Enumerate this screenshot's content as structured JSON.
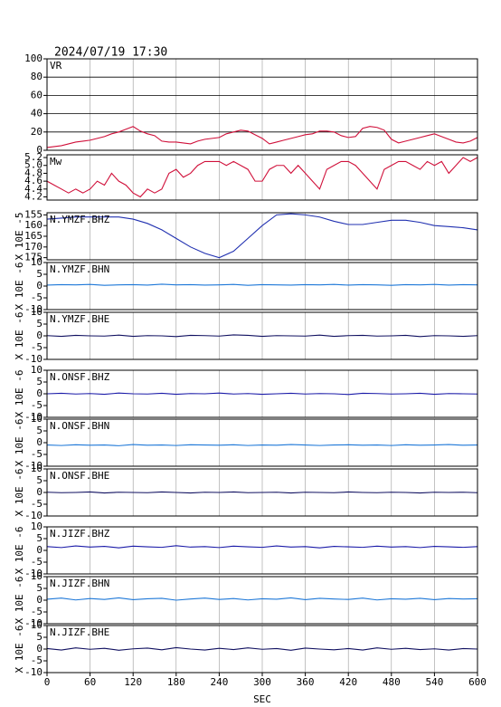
{
  "chart_data": [
    {
      "type": "line",
      "title": "2024/07/19 17:30",
      "label": "VR",
      "color": "#d0103a",
      "grid": true,
      "xlim": [
        0,
        600
      ],
      "ylim": [
        0,
        100
      ],
      "yticks": [
        0,
        20,
        40,
        60,
        80,
        100
      ],
      "x": [
        0,
        10,
        20,
        30,
        40,
        50,
        60,
        70,
        80,
        90,
        100,
        110,
        120,
        130,
        140,
        150,
        160,
        170,
        180,
        190,
        200,
        210,
        220,
        230,
        240,
        250,
        260,
        270,
        280,
        290,
        300,
        310,
        320,
        330,
        340,
        350,
        360,
        370,
        380,
        390,
        400,
        410,
        420,
        430,
        440,
        450,
        460,
        470,
        480,
        490,
        500,
        510,
        520,
        530,
        540,
        550,
        560,
        570,
        580,
        590,
        600
      ],
      "values": [
        3,
        4,
        5,
        7,
        9,
        10,
        11,
        13,
        15,
        18,
        20,
        23,
        26,
        21,
        18,
        16,
        10,
        9,
        9,
        8,
        7,
        10,
        12,
        13,
        14,
        18,
        20,
        22,
        21,
        17,
        13,
        7,
        9,
        11,
        13,
        15,
        17,
        18,
        21,
        21,
        20,
        16,
        14,
        15,
        24,
        26,
        25,
        22,
        12,
        8,
        10,
        12,
        14,
        16,
        18,
        15,
        12,
        9,
        8,
        10,
        14
      ]
    },
    {
      "type": "line",
      "label": "Mw",
      "color": "#d0103a",
      "grid": false,
      "xlim": [
        0,
        600
      ],
      "ylim": [
        4.12,
        5.27
      ],
      "yticks": [
        4.2,
        4.4,
        4.6,
        4.8,
        {
          "value": 5,
          "label": "5.0"
        },
        5.2
      ],
      "x": [
        0,
        10,
        20,
        30,
        40,
        50,
        60,
        70,
        80,
        90,
        100,
        110,
        120,
        130,
        140,
        150,
        160,
        170,
        180,
        190,
        200,
        210,
        220,
        230,
        240,
        250,
        260,
        270,
        280,
        290,
        300,
        310,
        320,
        330,
        340,
        350,
        360,
        370,
        380,
        390,
        400,
        410,
        420,
        430,
        440,
        450,
        460,
        470,
        480,
        490,
        500,
        510,
        520,
        530,
        540,
        550,
        560,
        570,
        580,
        590,
        600
      ],
      "values": [
        4.6,
        4.5,
        4.4,
        4.3,
        4.4,
        4.3,
        4.4,
        4.6,
        4.5,
        4.8,
        4.6,
        4.5,
        4.3,
        4.2,
        4.4,
        4.3,
        4.4,
        4.8,
        4.9,
        4.7,
        4.8,
        5.0,
        5.1,
        5.1,
        5.1,
        5.0,
        5.1,
        5.0,
        4.9,
        4.6,
        4.6,
        4.9,
        5.0,
        5.0,
        4.8,
        5.0,
        4.8,
        4.6,
        4.4,
        4.9,
        5.0,
        5.1,
        5.1,
        5.0,
        4.8,
        4.6,
        4.4,
        4.9,
        5.0,
        5.1,
        5.1,
        5.0,
        4.9,
        5.1,
        5.0,
        5.1,
        4.8,
        5.0,
        5.2,
        5.1,
        5.2
      ]
    },
    {
      "type": "line",
      "label": "N.YMZF.BHZ",
      "ylabel": "X 10E -5",
      "color": "#2030b0",
      "grid": false,
      "xlim": [
        0,
        600
      ],
      "ylim": [
        176,
        154
      ],
      "yticks": [
        155,
        160,
        165,
        170,
        175
      ],
      "x": [
        0,
        20,
        40,
        60,
        80,
        100,
        120,
        140,
        160,
        180,
        200,
        220,
        240,
        260,
        280,
        300,
        320,
        340,
        360,
        380,
        400,
        420,
        440,
        460,
        480,
        500,
        520,
        540,
        560,
        580,
        600
      ],
      "values": [
        157,
        156.5,
        156,
        156,
        156,
        156,
        157,
        159,
        162,
        166,
        170,
        173,
        175,
        172,
        166,
        160,
        155,
        154.5,
        155,
        156,
        158,
        159.5,
        159.5,
        158.5,
        157.5,
        157.5,
        158.5,
        160,
        160.5,
        161,
        162
      ]
    },
    {
      "type": "line",
      "label": "N.YMZF.BHN",
      "ylabel": "X 10E -6",
      "color": "#1e78d8",
      "grid": false,
      "xlim": [
        0,
        600
      ],
      "ylim": [
        -10,
        10
      ],
      "yticks": [
        -10,
        -5,
        0,
        5,
        10
      ],
      "x": [
        0,
        20,
        40,
        60,
        80,
        100,
        120,
        140,
        160,
        180,
        200,
        220,
        240,
        260,
        280,
        300,
        320,
        340,
        360,
        380,
        400,
        420,
        440,
        460,
        480,
        500,
        520,
        540,
        560,
        580,
        600
      ],
      "values": [
        0.4,
        0.6,
        0.5,
        0.7,
        0.3,
        0.5,
        0.6,
        0.4,
        0.8,
        0.5,
        0.6,
        0.4,
        0.5,
        0.7,
        0.3,
        0.6,
        0.5,
        0.4,
        0.6,
        0.5,
        0.7,
        0.4,
        0.6,
        0.5,
        0.3,
        0.6,
        0.5,
        0.7,
        0.4,
        0.6,
        0.5
      ]
    },
    {
      "type": "line",
      "label": "N.YMZF.BHE",
      "ylabel": "X 10E -6",
      "color": "#101060",
      "grid": false,
      "xlim": [
        0,
        600
      ],
      "ylim": [
        -10,
        10
      ],
      "yticks": [
        -10,
        -5,
        0,
        5,
        10
      ],
      "x": [
        0,
        20,
        40,
        60,
        80,
        100,
        120,
        140,
        160,
        180,
        200,
        220,
        240,
        260,
        280,
        300,
        320,
        340,
        360,
        380,
        400,
        420,
        440,
        460,
        480,
        500,
        520,
        540,
        560,
        580,
        600
      ],
      "values": [
        0.1,
        -0.2,
        0.2,
        0,
        -0.1,
        0.3,
        -0.2,
        0.1,
        0,
        -0.3,
        0.2,
        0.1,
        -0.1,
        0.4,
        0.2,
        -0.2,
        0.1,
        0,
        -0.1,
        0.3,
        -0.2,
        0.1,
        0.2,
        -0.1,
        0,
        0.2,
        -0.3,
        0.1,
        0,
        -0.2,
        0.1
      ]
    },
    {
      "type": "line",
      "label": "N.ONSF.BHZ",
      "ylabel": "X 10E -6",
      "color": "#1a1aa8",
      "grid": false,
      "xlim": [
        0,
        600
      ],
      "ylim": [
        -10,
        10
      ],
      "yticks": [
        -10,
        -5,
        0,
        5,
        10
      ],
      "x": [
        0,
        20,
        40,
        60,
        80,
        100,
        120,
        140,
        160,
        180,
        200,
        220,
        240,
        260,
        280,
        300,
        320,
        340,
        360,
        380,
        400,
        420,
        440,
        460,
        480,
        500,
        520,
        540,
        560,
        580,
        600
      ],
      "values": [
        0,
        0.2,
        -0.1,
        0.1,
        -0.2,
        0.3,
        0,
        -0.1,
        0.2,
        -0.2,
        0.1,
        0,
        0.3,
        -0.1,
        0.1,
        -0.2,
        0,
        0.2,
        -0.1,
        0.1,
        0,
        -0.3,
        0.2,
        0.1,
        -0.1,
        0,
        0.2,
        -0.2,
        0.1,
        0,
        -0.1
      ]
    },
    {
      "type": "line",
      "label": "N.ONSF.BHN",
      "ylabel": "X 10E -6",
      "color": "#1e78d8",
      "grid": false,
      "xlim": [
        0,
        600
      ],
      "ylim": [
        -10,
        10
      ],
      "yticks": [
        -10,
        -5,
        0,
        5,
        10
      ],
      "x": [
        0,
        20,
        40,
        60,
        80,
        100,
        120,
        140,
        160,
        180,
        200,
        220,
        240,
        260,
        280,
        300,
        320,
        340,
        360,
        380,
        400,
        420,
        440,
        460,
        480,
        500,
        520,
        540,
        560,
        580,
        600
      ],
      "values": [
        -1,
        -1.2,
        -0.9,
        -1.1,
        -1,
        -1.3,
        -0.8,
        -1.1,
        -1,
        -1.2,
        -0.9,
        -1,
        -1.1,
        -0.9,
        -1.2,
        -1,
        -1.1,
        -0.8,
        -1,
        -1.2,
        -1,
        -0.9,
        -1.1,
        -1,
        -1.2,
        -0.9,
        -1.1,
        -1,
        -0.8,
        -1.1,
        -1
      ]
    },
    {
      "type": "line",
      "label": "N.ONSF.BHE",
      "ylabel": "X 10E -6",
      "color": "#101060",
      "grid": false,
      "xlim": [
        0,
        600
      ],
      "ylim": [
        -10,
        10
      ],
      "yticks": [
        -10,
        -5,
        0,
        5,
        10
      ],
      "x": [
        0,
        20,
        40,
        60,
        80,
        100,
        120,
        140,
        160,
        180,
        200,
        220,
        240,
        260,
        280,
        300,
        320,
        340,
        360,
        380,
        400,
        420,
        440,
        460,
        480,
        500,
        520,
        540,
        560,
        580,
        600
      ],
      "values": [
        0.1,
        -0.1,
        0,
        0.2,
        -0.2,
        0.1,
        0,
        -0.1,
        0.2,
        0,
        -0.2,
        0.1,
        0,
        0.2,
        -0.1,
        0,
        0.1,
        -0.2,
        0.1,
        0,
        -0.1,
        0.2,
        0,
        -0.1,
        0.1,
        0,
        -0.2,
        0.1,
        0,
        0.1,
        -0.1
      ]
    },
    {
      "type": "line",
      "label": "N.JIZF.BHZ",
      "ylabel": "X 10E -6",
      "color": "#1a1aa8",
      "grid": false,
      "xlim": [
        0,
        600
      ],
      "ylim": [
        -10,
        10
      ],
      "yticks": [
        -10,
        -5,
        0,
        5,
        10
      ],
      "x": [
        0,
        20,
        40,
        60,
        80,
        100,
        120,
        140,
        160,
        180,
        200,
        220,
        240,
        260,
        280,
        300,
        320,
        340,
        360,
        380,
        400,
        420,
        440,
        460,
        480,
        500,
        520,
        540,
        560,
        580,
        600
      ],
      "values": [
        1.6,
        1.2,
        1.9,
        1.4,
        1.7,
        1.1,
        1.8,
        1.5,
        1.3,
        2.0,
        1.4,
        1.6,
        1.2,
        1.8,
        1.5,
        1.3,
        1.9,
        1.4,
        1.6,
        1.1,
        1.7,
        1.5,
        1.3,
        1.8,
        1.4,
        1.6,
        1.2,
        1.7,
        1.5,
        1.3,
        1.6
      ]
    },
    {
      "type": "line",
      "label": "N.JIZF.BHN",
      "ylabel": "X 10E -6",
      "color": "#1e78d8",
      "grid": false,
      "xlim": [
        0,
        600
      ],
      "ylim": [
        -10,
        10
      ],
      "yticks": [
        -10,
        -5,
        0,
        5,
        10
      ],
      "x": [
        0,
        20,
        40,
        60,
        80,
        100,
        120,
        140,
        160,
        180,
        200,
        220,
        240,
        260,
        280,
        300,
        320,
        340,
        360,
        380,
        400,
        420,
        440,
        460,
        480,
        500,
        520,
        540,
        560,
        580,
        600
      ],
      "values": [
        0.4,
        0.9,
        0.1,
        0.7,
        0.3,
        1.0,
        0.2,
        0.6,
        0.8,
        0,
        0.5,
        0.9,
        0.3,
        0.7,
        0.1,
        0.6,
        0.4,
        1.0,
        0.2,
        0.8,
        0.5,
        0.3,
        0.9,
        0.1,
        0.6,
        0.4,
        0.8,
        0.2,
        0.7,
        0.5,
        0.6
      ]
    },
    {
      "type": "line",
      "label": "N.JIZF.BHE",
      "ylabel": "X 10E -6",
      "color": "#101060",
      "grid": false,
      "xlim": [
        0,
        600
      ],
      "ylim": [
        -10,
        10
      ],
      "yticks": [
        -10,
        -5,
        0,
        5,
        10
      ],
      "xticks": [
        0,
        60,
        120,
        180,
        240,
        300,
        360,
        420,
        480,
        540,
        600
      ],
      "xlabel": "SEC",
      "x": [
        0,
        20,
        40,
        60,
        80,
        100,
        120,
        140,
        160,
        180,
        200,
        220,
        240,
        260,
        280,
        300,
        320,
        340,
        360,
        380,
        400,
        420,
        440,
        460,
        480,
        500,
        520,
        540,
        560,
        580,
        600
      ],
      "values": [
        0.2,
        -0.4,
        0.5,
        -0.1,
        0.3,
        -0.5,
        0.1,
        0.4,
        -0.3,
        0.6,
        0,
        -0.4,
        0.3,
        -0.2,
        0.5,
        -0.1,
        0.2,
        -0.5,
        0.4,
        0,
        -0.3,
        0.2,
        -0.4,
        0.5,
        -0.1,
        0.3,
        -0.2,
        0.1,
        -0.4,
        0.2,
        0
      ]
    }
  ]
}
